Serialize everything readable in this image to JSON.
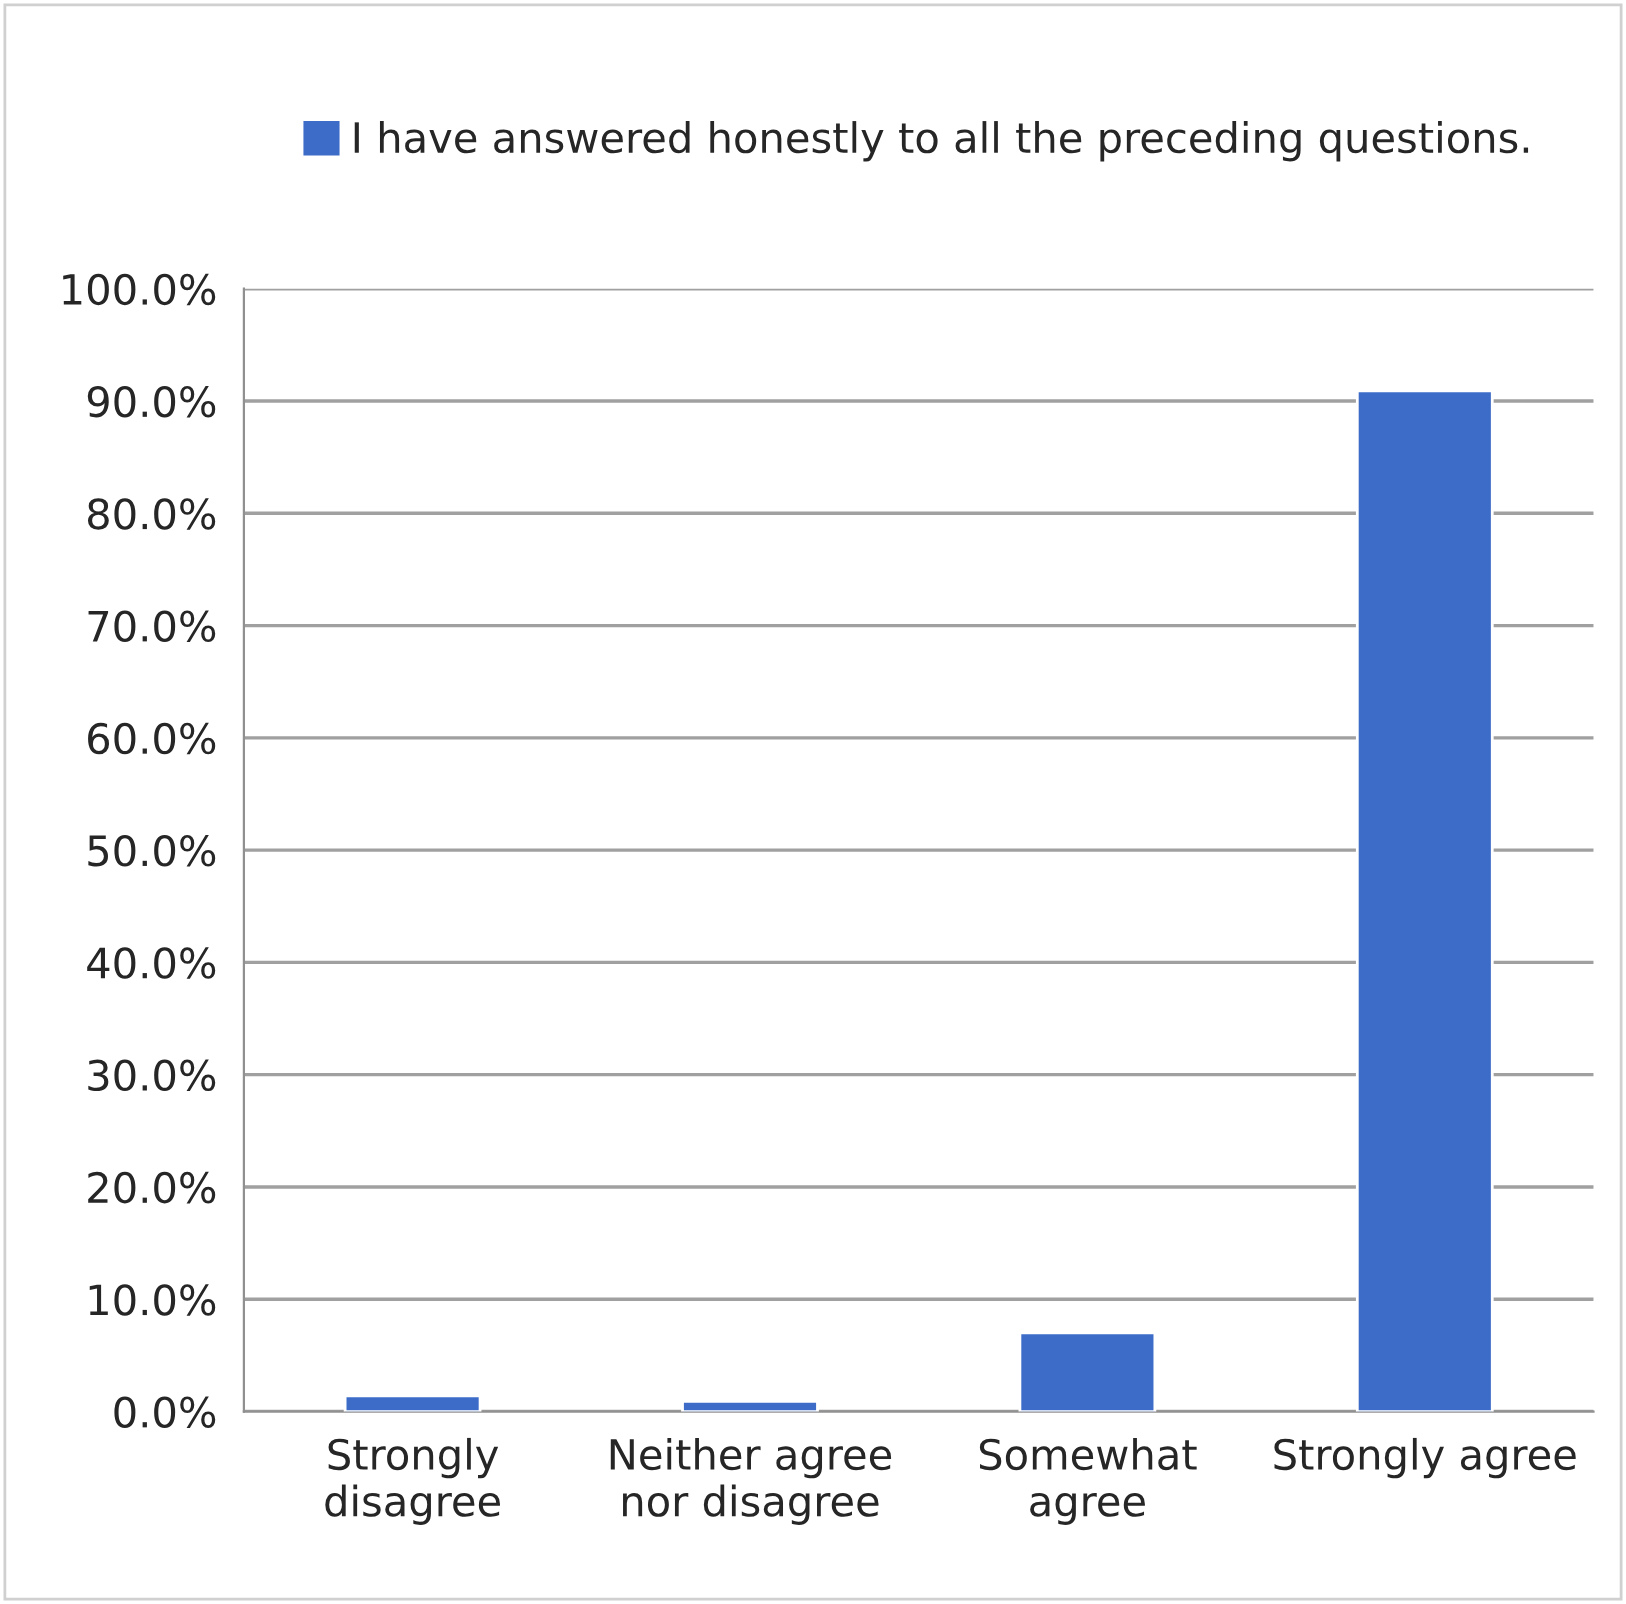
{
  "chart_data": {
    "type": "bar",
    "categories": [
      "Strongly\ndisagree",
      "Neither agree\nnor disagree",
      "Somewhat\nagree",
      "Strongly agree"
    ],
    "series": [
      {
        "name": "I have answered honestly to all the preceding questions.",
        "color": "#3d6cc8",
        "values": [
          1.4,
          0.9,
          7.0,
          90.9
        ]
      }
    ],
    "ylim": [
      0,
      100
    ],
    "yticks": [
      {
        "value": 0,
        "label": "0.0%"
      },
      {
        "value": 10,
        "label": "10.0%"
      },
      {
        "value": 20,
        "label": "20.0%"
      },
      {
        "value": 30,
        "label": "30.0%"
      },
      {
        "value": 40,
        "label": "40.0%"
      },
      {
        "value": 50,
        "label": "50.0%"
      },
      {
        "value": 60,
        "label": "60.0%"
      },
      {
        "value": 70,
        "label": "70.0%"
      },
      {
        "value": 80,
        "label": "80.0%"
      },
      {
        "value": 90,
        "label": "90.0%"
      },
      {
        "value": 100,
        "label": "100.0%"
      }
    ],
    "grid": "y",
    "legend": "top"
  }
}
